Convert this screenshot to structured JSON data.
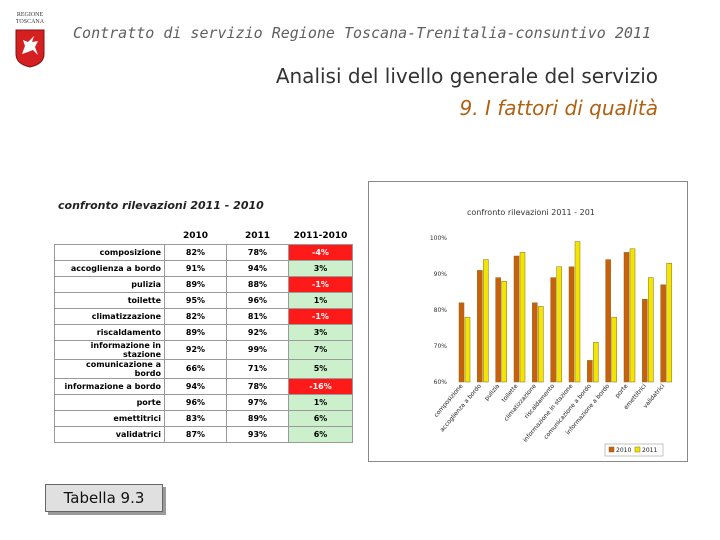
{
  "header": {
    "logo_text": "REGIONE TOSCANA",
    "subtitle": "Contratto di servizio Regione Toscana-Trenitalia-consuntivo 2011"
  },
  "title": {
    "line1": "Analisi del livello generale del servizio",
    "line2": "9. I fattori di qualità"
  },
  "table": {
    "caption": "confronto rilevazioni 2011 - 2010",
    "columns": [
      "",
      "2010",
      "2011",
      "2011-2010"
    ],
    "rows": [
      {
        "label": "composizione",
        "v2010": "82%",
        "v2011": "78%",
        "diff": "-4%",
        "neg": true
      },
      {
        "label": "accoglienza a bordo",
        "v2010": "91%",
        "v2011": "94%",
        "diff": "3%",
        "neg": false
      },
      {
        "label": "pulizia",
        "v2010": "89%",
        "v2011": "88%",
        "diff": "-1%",
        "neg": true
      },
      {
        "label": "toilette",
        "v2010": "95%",
        "v2011": "96%",
        "diff": "1%",
        "neg": false
      },
      {
        "label": "climatizzazione",
        "v2010": "82%",
        "v2011": "81%",
        "diff": "-1%",
        "neg": true
      },
      {
        "label": "riscaldamento",
        "v2010": "89%",
        "v2011": "92%",
        "diff": "3%",
        "neg": false
      },
      {
        "label": "informazione in stazione",
        "v2010": "92%",
        "v2011": "99%",
        "diff": "7%",
        "neg": false
      },
      {
        "label": "comunicazione a bordo",
        "v2010": "66%",
        "v2011": "71%",
        "diff": "5%",
        "neg": false
      },
      {
        "label": "informazione a bordo",
        "v2010": "94%",
        "v2011": "78%",
        "diff": "-16%",
        "neg": true
      },
      {
        "label": "porte",
        "v2010": "96%",
        "v2011": "97%",
        "diff": "1%",
        "neg": false
      },
      {
        "label": "emettitrici",
        "v2010": "83%",
        "v2011": "89%",
        "diff": "6%",
        "neg": false
      },
      {
        "label": "validatrici",
        "v2010": "87%",
        "v2011": "93%",
        "diff": "6%",
        "neg": false
      }
    ]
  },
  "tabella_label": "Tabella 9.3",
  "chart_data": {
    "type": "bar",
    "title": "confronto rilevazioni 2011 - 201",
    "categories": [
      "composizione",
      "accoglienza a bordo",
      "pulizia",
      "toilette",
      "climatizzazione",
      "riscaldamento",
      "informazione in stazione",
      "comunicazione a bordo",
      "informazione a bordo",
      "porte",
      "emettitrici",
      "validatrici"
    ],
    "series": [
      {
        "name": "2010",
        "values": [
          82,
          91,
          89,
          95,
          82,
          89,
          92,
          66,
          94,
          96,
          83,
          87
        ],
        "color": "#c8600c"
      },
      {
        "name": "2011",
        "values": [
          78,
          94,
          88,
          96,
          81,
          92,
          99,
          71,
          78,
          97,
          89,
          93
        ],
        "color": "#f2e600"
      }
    ],
    "ylim": [
      60,
      100
    ],
    "yticks": [
      "60%",
      "70%",
      "80%",
      "90%",
      "100%"
    ],
    "legend": "bottom-right",
    "grid": false
  }
}
